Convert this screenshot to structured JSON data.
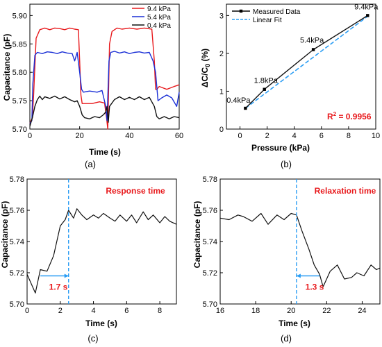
{
  "panels": [
    "(a)",
    "(b)",
    "(c)",
    "(d)"
  ],
  "colors": {
    "red": "#e8191c",
    "blue": "#1a2fd6",
    "black": "#111111",
    "accent": "#2a9df4",
    "highlight": "#e8191c"
  },
  "chart_data": [
    {
      "id": "a",
      "type": "line",
      "xlabel": "Time (s)",
      "ylabel": "Capacitance (pF)",
      "xlim": [
        0,
        60
      ],
      "ylim": [
        5.7,
        5.92
      ],
      "xticks": [
        0,
        20,
        40,
        60
      ],
      "yticks": [
        5.7,
        5.75,
        5.8,
        5.85,
        5.9
      ],
      "ytick_labels": [
        "5.70",
        "5.75",
        "5.80",
        "5.85",
        "5.90"
      ],
      "legend_position": "top-right",
      "series": [
        {
          "name": "9.4 kPa",
          "color": "red",
          "x": [
            0,
            1,
            1.5,
            2.5,
            4,
            6,
            8,
            10,
            12,
            14,
            16,
            18,
            19.5,
            20,
            20.5,
            21,
            25,
            28,
            30,
            30.8,
            31.3,
            32,
            33,
            35,
            37,
            40,
            43,
            46,
            49,
            50,
            50.5,
            51,
            52,
            55,
            58,
            60
          ],
          "y": [
            5.71,
            5.72,
            5.76,
            5.86,
            5.875,
            5.878,
            5.875,
            5.878,
            5.877,
            5.875,
            5.878,
            5.876,
            5.875,
            5.82,
            5.76,
            5.745,
            5.745,
            5.748,
            5.746,
            5.72,
            5.7,
            5.85,
            5.872,
            5.878,
            5.876,
            5.878,
            5.876,
            5.878,
            5.876,
            5.82,
            5.77,
            5.77,
            5.775,
            5.77,
            5.775,
            5.778
          ]
        },
        {
          "name": "5.4 kPa",
          "color": "blue",
          "x": [
            0,
            0.8,
            1.2,
            2,
            3,
            5,
            7,
            9,
            11,
            13,
            15,
            17,
            18,
            19,
            20,
            20.8,
            21.5,
            24,
            27,
            29,
            30.5,
            31,
            31.8,
            32.5,
            34,
            36,
            38,
            40,
            42,
            44,
            46,
            48,
            49.5,
            50.5,
            51.5,
            53,
            55,
            57,
            59,
            60
          ],
          "y": [
            5.71,
            5.715,
            5.78,
            5.83,
            5.835,
            5.833,
            5.836,
            5.835,
            5.833,
            5.836,
            5.834,
            5.833,
            5.82,
            5.835,
            5.8,
            5.77,
            5.765,
            5.767,
            5.765,
            5.768,
            5.74,
            5.715,
            5.82,
            5.835,
            5.837,
            5.834,
            5.836,
            5.833,
            5.835,
            5.836,
            5.834,
            5.835,
            5.82,
            5.8,
            5.75,
            5.755,
            5.76,
            5.755,
            5.74,
            5.765
          ]
        },
        {
          "name": "0.4 kPa",
          "color": "black",
          "x": [
            0,
            1,
            2,
            3,
            4,
            5,
            6,
            8,
            10,
            12,
            14,
            16,
            18,
            19,
            20,
            21,
            22,
            24,
            26,
            28,
            29.5,
            30.5,
            31,
            31.5,
            32,
            34,
            36,
            38,
            40,
            42,
            44,
            46,
            48,
            50,
            51,
            52,
            54,
            56,
            58,
            60
          ],
          "y": [
            5.705,
            5.72,
            5.74,
            5.752,
            5.758,
            5.752,
            5.757,
            5.754,
            5.758,
            5.753,
            5.757,
            5.752,
            5.748,
            5.75,
            5.74,
            5.725,
            5.72,
            5.718,
            5.722,
            5.72,
            5.725,
            5.73,
            5.74,
            5.712,
            5.74,
            5.752,
            5.757,
            5.752,
            5.756,
            5.752,
            5.757,
            5.752,
            5.756,
            5.74,
            5.722,
            5.718,
            5.722,
            5.718,
            5.722,
            5.72
          ]
        }
      ]
    },
    {
      "id": "b",
      "type": "line",
      "xlabel": "Pressure (kPa)",
      "ylabel": "ΔC/C",
      "ylabel_sub": "0",
      "ylabel_unit": " (%)",
      "xlim": [
        -1,
        10
      ],
      "ylim": [
        0,
        3.3
      ],
      "xticks": [
        0,
        2,
        4,
        6,
        8,
        10
      ],
      "yticks": [
        0,
        1,
        2,
        3
      ],
      "legend_position": "top-left",
      "series": [
        {
          "name": "Measured Data",
          "color": "black",
          "style": "solid-markers",
          "x": [
            0.4,
            1.8,
            5.4,
            9.4
          ],
          "y": [
            0.55,
            1.05,
            2.1,
            3.0
          ]
        },
        {
          "name": "Linear Fit",
          "color": "accent",
          "style": "dashed",
          "x": [
            0.4,
            9.4
          ],
          "y": [
            0.55,
            2.98
          ]
        }
      ],
      "point_labels": [
        "0.4kPa",
        "1.8kPa",
        "5.4kPa",
        "9.4kPa"
      ],
      "r2_label": "R",
      "r2_sup": "2",
      "r2_value": " = 0.9956"
    },
    {
      "id": "c",
      "type": "line",
      "xlabel": "Time (s)",
      "ylabel": "Capacitance (pF)",
      "xlim": [
        0,
        9
      ],
      "ylim": [
        5.7,
        5.78
      ],
      "xticks": [
        0,
        2,
        4,
        6,
        8
      ],
      "yticks": [
        5.7,
        5.72,
        5.74,
        5.76,
        5.78
      ],
      "ytick_labels": [
        "5.70",
        "5.72",
        "5.74",
        "5.76",
        "5.78"
      ],
      "title": "Response time",
      "interval_label": "1.7 s",
      "interval": [
        0.8,
        2.5
      ],
      "marker_x": 2.5,
      "series": [
        {
          "name": "",
          "color": "black",
          "x": [
            0,
            0.5,
            0.8,
            1.2,
            1.6,
            2.0,
            2.3,
            2.5,
            2.8,
            3.0,
            3.3,
            3.6,
            4.0,
            4.3,
            4.6,
            5.0,
            5.3,
            5.6,
            6.0,
            6.3,
            6.6,
            7.0,
            7.3,
            7.6,
            8.0,
            8.3,
            8.6,
            9.0
          ],
          "y": [
            5.719,
            5.707,
            5.722,
            5.721,
            5.731,
            5.75,
            5.754,
            5.76,
            5.755,
            5.761,
            5.757,
            5.754,
            5.757,
            5.755,
            5.758,
            5.755,
            5.753,
            5.757,
            5.753,
            5.757,
            5.752,
            5.759,
            5.754,
            5.757,
            5.752,
            5.756,
            5.753,
            5.751
          ]
        }
      ]
    },
    {
      "id": "d",
      "type": "line",
      "xlabel": "Time (s)",
      "ylabel": "Capacitance (pF)",
      "xlim": [
        16,
        25
      ],
      "ylim": [
        5.7,
        5.78
      ],
      "xticks": [
        16,
        18,
        20,
        22,
        24
      ],
      "yticks": [
        5.7,
        5.72,
        5.74,
        5.76,
        5.78
      ],
      "ytick_labels": [
        "5.70",
        "5.72",
        "5.74",
        "5.76",
        "5.78"
      ],
      "title": "Relaxation time",
      "interval_label": "1.3 s",
      "interval": [
        20.3,
        21.6
      ],
      "marker_x": 20.3,
      "series": [
        {
          "name": "",
          "color": "black",
          "x": [
            16,
            16.5,
            17,
            17.3,
            17.8,
            18.3,
            18.7,
            19.2,
            19.6,
            20.0,
            20.3,
            20.6,
            21.0,
            21.3,
            21.6,
            21.8,
            22.2,
            22.6,
            23.0,
            23.4,
            23.7,
            24.1,
            24.5,
            24.8,
            25.0
          ],
          "y": [
            5.755,
            5.754,
            5.757,
            5.756,
            5.753,
            5.758,
            5.751,
            5.757,
            5.754,
            5.758,
            5.757,
            5.747,
            5.735,
            5.725,
            5.719,
            5.711,
            5.721,
            5.725,
            5.716,
            5.717,
            5.72,
            5.718,
            5.725,
            5.722,
            5.723
          ]
        }
      ]
    }
  ]
}
